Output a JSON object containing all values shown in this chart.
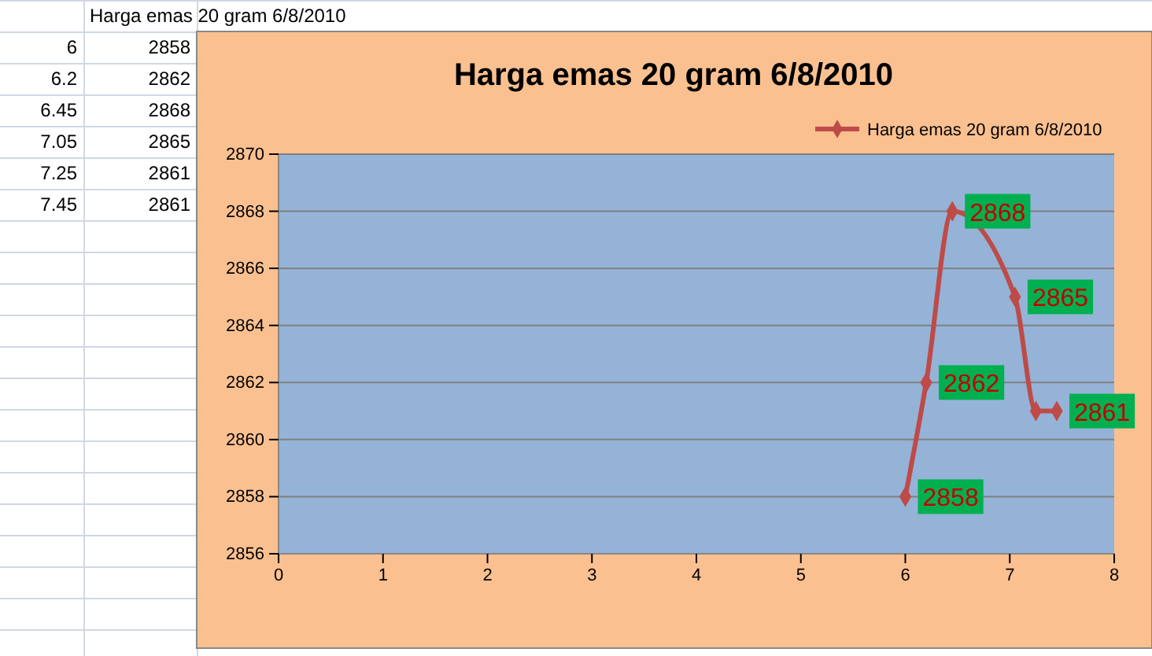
{
  "chart_data": {
    "type": "line",
    "title": "Harga emas 20 gram 6/8/2010",
    "x": [
      6,
      6.2,
      6.45,
      7.05,
      7.25,
      7.45
    ],
    "series": [
      {
        "name": "Harga emas 20 gram 6/8/2010",
        "color": "#be4b48",
        "values": [
          2858,
          2862,
          2868,
          2865,
          2861,
          2861
        ]
      }
    ],
    "xlim": [
      0,
      8
    ],
    "xticks": [
      0,
      1,
      2,
      3,
      4,
      5,
      6,
      7,
      8
    ],
    "ylim": [
      2856,
      2870
    ],
    "yticks": [
      2856,
      2858,
      2860,
      2862,
      2864,
      2866,
      2868,
      2870
    ],
    "value_labels": [
      "2858",
      "2862",
      "2868",
      "2865",
      null,
      "2861"
    ],
    "annotations": [
      "6",
      "2858",
      "6.2",
      "2862",
      "6.45",
      "2868",
      "7.05",
      "2865",
      "7.25",
      "2861",
      "7.45",
      "2861"
    ],
    "grid": "y",
    "legend": "top right",
    "marker": "diamond",
    "line_style": "solid"
  }
}
